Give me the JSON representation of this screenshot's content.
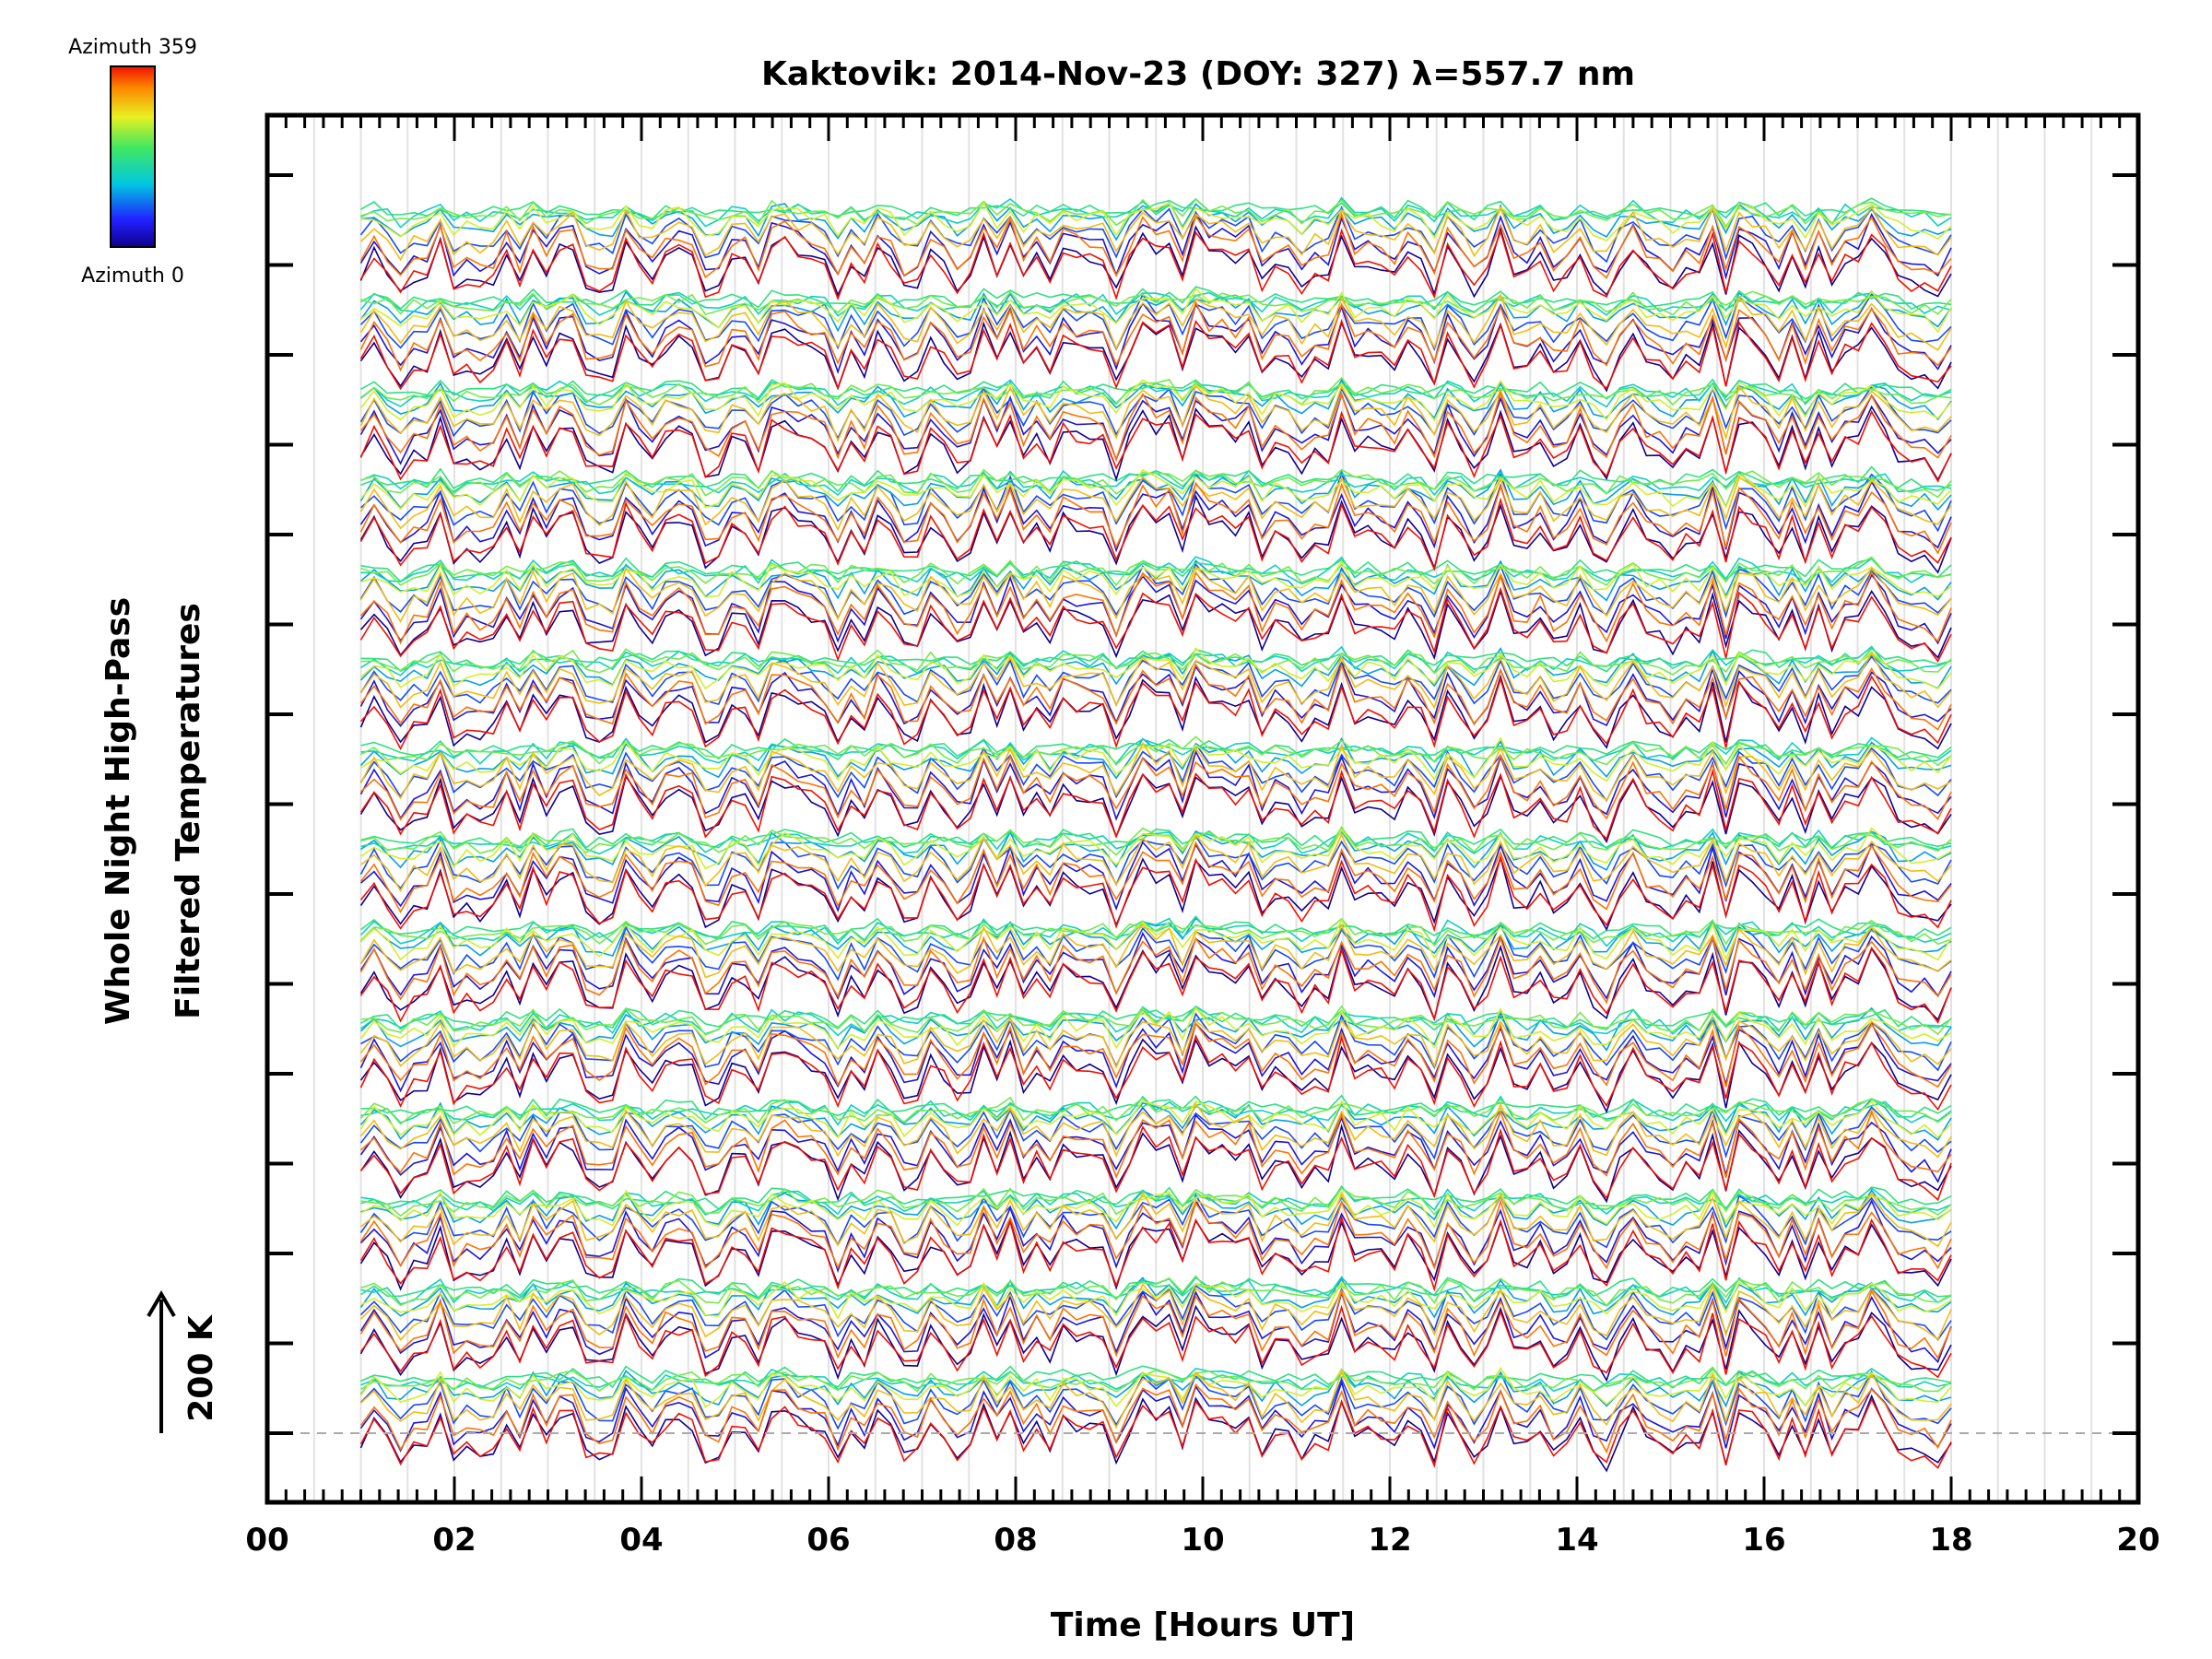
{
  "chart_data": {
    "type": "line",
    "title": "Kaktovik: 2014-Nov-23 (DOY: 327) λ=557.7 nm",
    "xlabel": "Time [Hours UT]",
    "ylabel_line1": "Whole Night High-Pass",
    "ylabel_line2": "Filtered Temperatures",
    "scale_bar_label": "200 K",
    "xlim": [
      0,
      20
    ],
    "x_tick_labels": [
      "00",
      "02",
      "04",
      "06",
      "08",
      "10",
      "12",
      "14",
      "16",
      "18",
      "20"
    ],
    "x_tick_values": [
      0,
      2,
      4,
      6,
      8,
      10,
      12,
      14,
      16,
      18,
      20
    ],
    "data_time_range": [
      1.0,
      18.0
    ],
    "series_count": 14,
    "series_spacing_K": 200,
    "colorbar": {
      "top_label": "Azimuth 359",
      "bottom_label": "Azimuth 0",
      "colormap": "rainbow"
    },
    "grid": "vertical light-gray lines every 0.5 h",
    "baseline": "dashed gray line at lowest series offset"
  }
}
